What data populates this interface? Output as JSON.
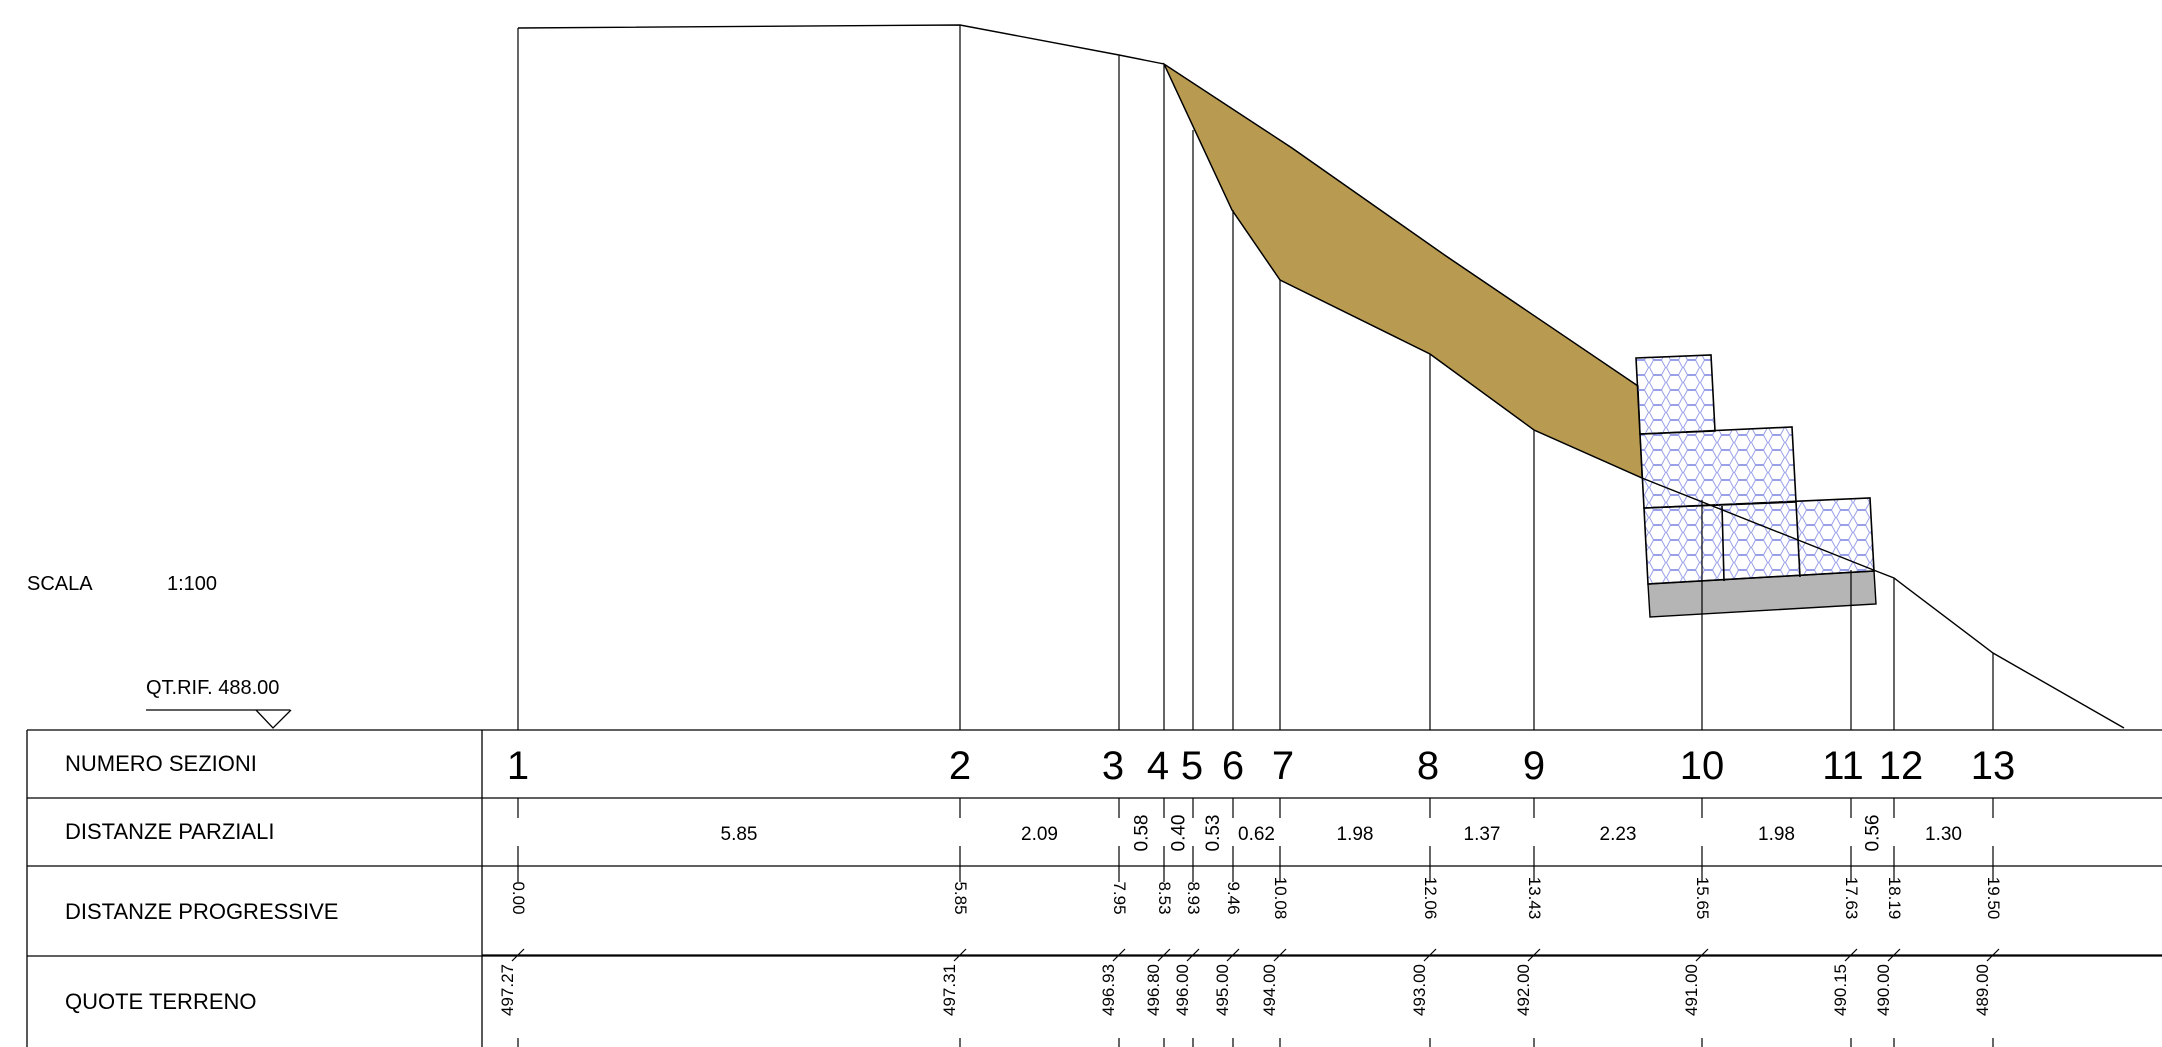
{
  "scale": {
    "label": "SCALA",
    "value": "1:100"
  },
  "reference": {
    "label": "QT.RIF. 488.00"
  },
  "table": {
    "row_labels": {
      "sections": "NUMERO SEZIONI",
      "partial": "DISTANZE PARZIALI",
      "progressive": "DISTANZE PROGRESSIVE",
      "elevations": "QUOTE TERRENO"
    }
  },
  "sections": [
    {
      "number": "1",
      "progressive": "0.00",
      "elevation": "497.27"
    },
    {
      "number": "2",
      "progressive": "5.85",
      "elevation": "497.31"
    },
    {
      "number": "3",
      "progressive": "7.95",
      "elevation": "496.93"
    },
    {
      "number": "4",
      "progressive": "8.53",
      "elevation": "496.80"
    },
    {
      "number": "5",
      "progressive": "8.93",
      "elevation": "496.00"
    },
    {
      "number": "6",
      "progressive": "9.46",
      "elevation": "495.00"
    },
    {
      "number": "7",
      "progressive": "10.08",
      "elevation": "494.00"
    },
    {
      "number": "8",
      "progressive": "12.06",
      "elevation": "493.00"
    },
    {
      "number": "9",
      "progressive": "13.43",
      "elevation": "492.00"
    },
    {
      "number": "10",
      "progressive": "15.65",
      "elevation": "491.00"
    },
    {
      "number": "11",
      "progressive": "17.63",
      "elevation": "490.15"
    },
    {
      "number": "12",
      "progressive": "18.19",
      "elevation": "490.00"
    },
    {
      "number": "13",
      "progressive": "19.50",
      "elevation": "489.00"
    }
  ],
  "partial_distances": [
    "5.85",
    "2.09",
    "0.58",
    "0.40",
    "0.53",
    "0.62",
    "1.98",
    "1.37",
    "2.23",
    "1.98",
    "0.56",
    "1.30"
  ],
  "colors": {
    "fill": "#b89a50",
    "gabion_stroke": "#9aa0e8",
    "foundation": "#b5b5b5",
    "line": "#000000"
  }
}
